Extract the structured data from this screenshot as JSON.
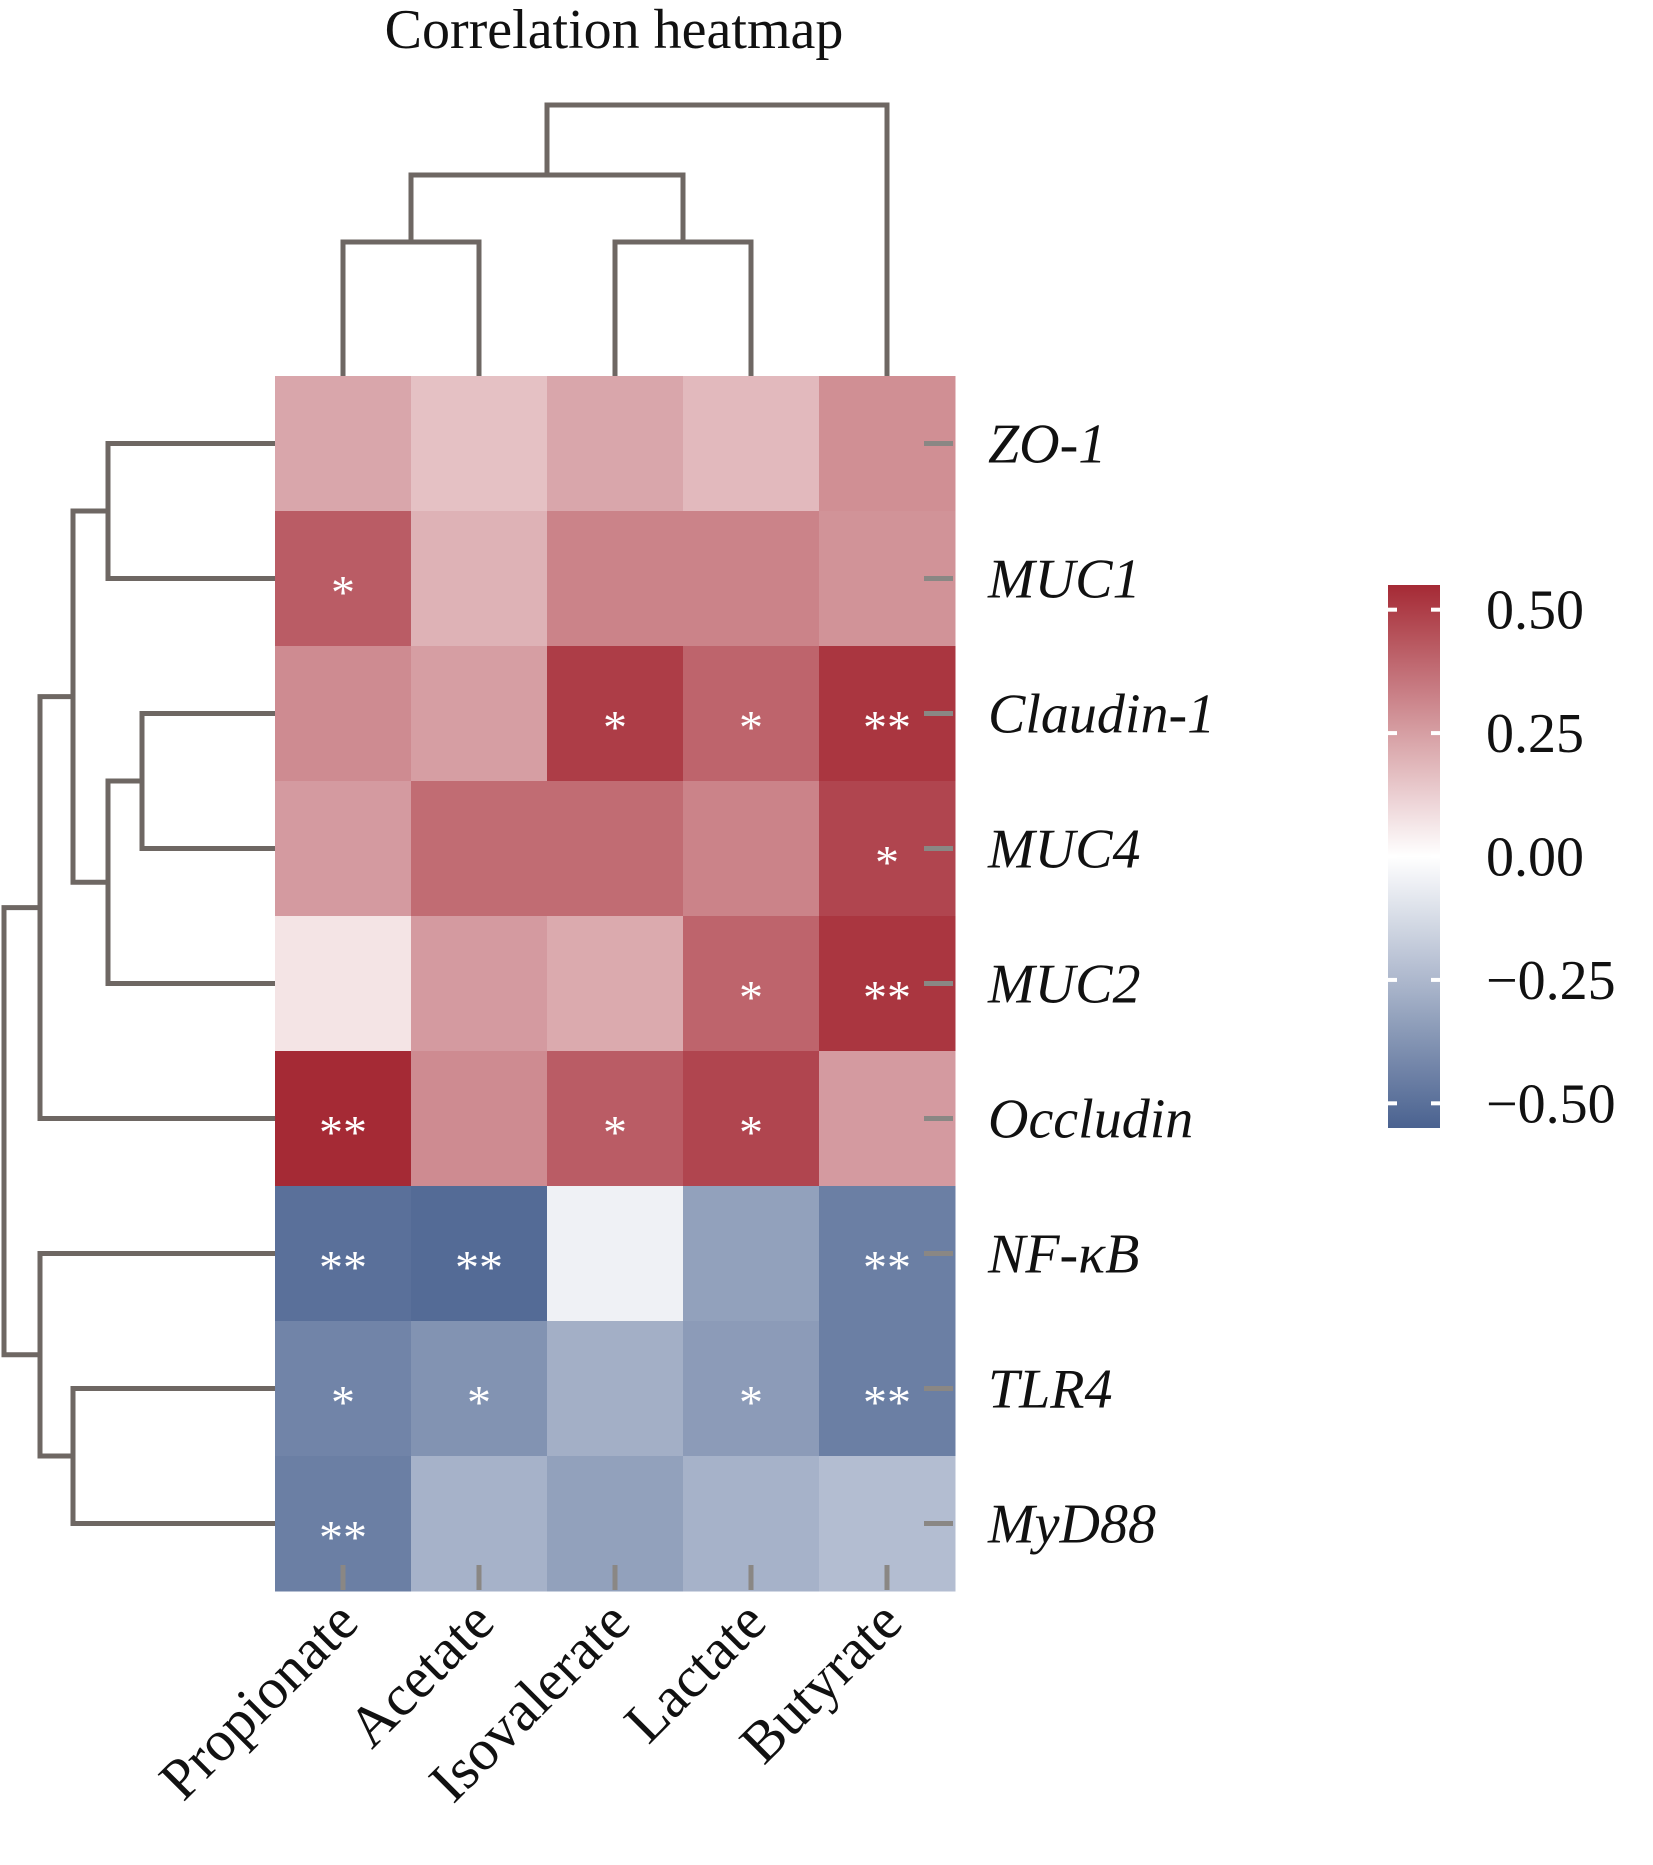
{
  "chart_data": {
    "type": "heatmap",
    "title": "Correlation heatmap",
    "columns": [
      "Propionate",
      "Acetate",
      "Isovalerate",
      "Lactate",
      "Butyrate"
    ],
    "rows": [
      "ZO-1",
      "MUC1",
      "Claudin-1",
      "MUC4",
      "MUC2",
      "Occludin",
      "NF-κB",
      "TLR4",
      "MyD88"
    ],
    "values": [
      [
        0.23,
        0.16,
        0.23,
        0.18,
        0.29
      ],
      [
        0.42,
        0.2,
        0.32,
        0.32,
        0.28
      ],
      [
        0.3,
        0.25,
        0.5,
        0.4,
        0.52
      ],
      [
        0.26,
        0.38,
        0.38,
        0.32,
        0.48
      ],
      [
        0.07,
        0.26,
        0.22,
        0.4,
        0.52
      ],
      [
        0.55,
        0.3,
        0.42,
        0.48,
        0.26
      ],
      [
        -0.5,
        -0.52,
        -0.05,
        -0.33,
        -0.45
      ],
      [
        -0.43,
        -0.38,
        -0.28,
        -0.35,
        -0.45
      ],
      [
        -0.45,
        -0.27,
        -0.33,
        -0.27,
        -0.23
      ]
    ],
    "significance": [
      [
        "",
        "",
        "",
        "",
        ""
      ],
      [
        "*",
        "",
        "",
        "",
        ""
      ],
      [
        "",
        "",
        "*",
        "*",
        "**"
      ],
      [
        "",
        "",
        "",
        "",
        "*"
      ],
      [
        "",
        "",
        "",
        "*",
        "**"
      ],
      [
        "**",
        "",
        "*",
        "*",
        ""
      ],
      [
        "**",
        "**",
        "",
        "",
        "**"
      ],
      [
        "*",
        "*",
        "",
        "*",
        "**"
      ],
      [
        "**",
        "",
        "",
        "",
        ""
      ]
    ],
    "colorbar": {
      "min": -0.55,
      "max": 0.55,
      "ticks": [
        0.5,
        0.25,
        0.0,
        -0.25,
        -0.5
      ],
      "tick_labels": [
        "0.50",
        "0.25",
        "0.00",
        "−0.25",
        "−0.50"
      ]
    },
    "colors": {
      "positive": "#a52a35",
      "neutral": "#ffffff",
      "negative": "#4a6290",
      "dendrogram": "#6e6763",
      "tick": "#8a8784",
      "star": "#ffffff"
    },
    "row_dendrogram": "((ZO-1, MUC1), ((Claudin-1, MUC4), MUC2)), Occludin), (NF-κB, (TLR4, MyD88))",
    "column_dendrogram": "((Propionate, Acetate), (Isovalerate, Lactate)), Butyrate"
  }
}
